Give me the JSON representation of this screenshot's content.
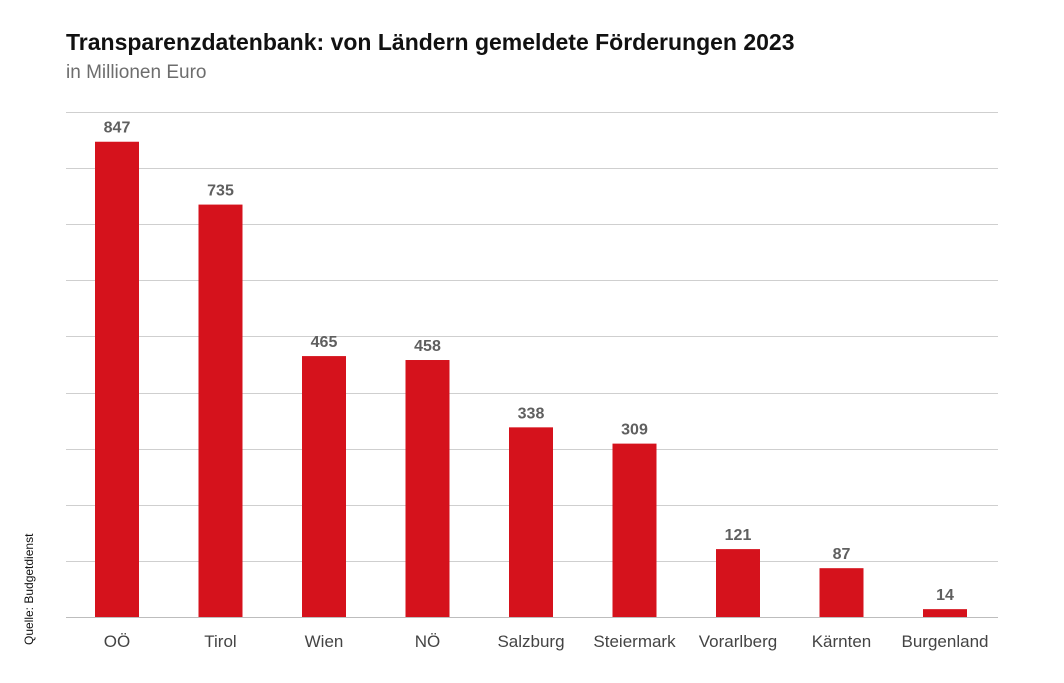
{
  "title": "Transparenzdatenbank: von Ländern gemeldete Förderungen 2023",
  "subtitle": "in Millionen Euro",
  "source": "Quelle: Budgetdienst",
  "colors": {
    "bar": "#d5121c",
    "grid": "#cfcfcf",
    "label": "#5f5f5f",
    "category": "#444444"
  },
  "chart_data": {
    "type": "bar",
    "title": "Transparenzdatenbank: von Ländern gemeldete Förderungen 2023",
    "subtitle": "in Millionen Euro",
    "categories": [
      "OÖ",
      "Tirol",
      "Wien",
      "NÖ",
      "Salzburg",
      "Steiermark",
      "Vorarlberg",
      "Kärnten",
      "Burgenland"
    ],
    "values": [
      847,
      735,
      465,
      458,
      338,
      309,
      121,
      87,
      14
    ],
    "ylim": [
      0,
      900
    ],
    "yticks": [
      0,
      100,
      200,
      300,
      400,
      500,
      600,
      700,
      800,
      900
    ],
    "grid": true,
    "legend": "none",
    "xlabel": "",
    "ylabel": ""
  }
}
